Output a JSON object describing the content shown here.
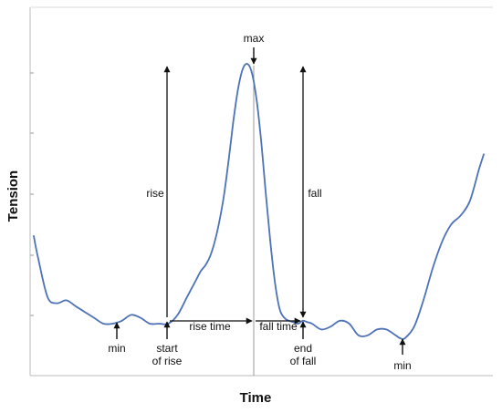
{
  "chart_data": {
    "type": "line",
    "xlabel": "Time",
    "ylabel": "Tension",
    "grid": false,
    "series": [
      {
        "color": "#4d72b8",
        "x": [
          0,
          1,
          3,
          5,
          7,
          9,
          11,
          13,
          15,
          17,
          19,
          21,
          23,
          25,
          27,
          29,
          31,
          33,
          34,
          35,
          36,
          37,
          38,
          39,
          40,
          41,
          42,
          43,
          44,
          45,
          46,
          47,
          48,
          49,
          50,
          51,
          52,
          53,
          54,
          55,
          56,
          57,
          58,
          59,
          60,
          62,
          64,
          66,
          68,
          70,
          72,
          74,
          76,
          78,
          79,
          80,
          82,
          84,
          86,
          88,
          90,
          92,
          94,
          96,
          97
        ],
        "y": [
          0.41,
          0.33,
          0.2,
          0.18,
          0.19,
          0.17,
          0.15,
          0.13,
          0.11,
          0.11,
          0.12,
          0.14,
          0.13,
          0.11,
          0.11,
          0.11,
          0.14,
          0.2,
          0.23,
          0.26,
          0.29,
          0.31,
          0.34,
          0.39,
          0.46,
          0.55,
          0.67,
          0.8,
          0.91,
          0.98,
          1.0,
          0.97,
          0.88,
          0.74,
          0.56,
          0.39,
          0.25,
          0.16,
          0.13,
          0.12,
          0.115,
          0.11,
          0.12,
          0.115,
          0.11,
          0.09,
          0.1,
          0.12,
          0.11,
          0.07,
          0.07,
          0.09,
          0.09,
          0.07,
          0.06,
          0.06,
          0.1,
          0.19,
          0.3,
          0.39,
          0.45,
          0.48,
          0.53,
          0.64,
          0.69
        ]
      }
    ],
    "annotations": [
      {
        "key": "max",
        "label": [
          "max"
        ]
      },
      {
        "key": "rise",
        "label": [
          "rise"
        ]
      },
      {
        "key": "fall",
        "label": [
          "fall"
        ]
      },
      {
        "key": "rise-time",
        "label": [
          "rise time"
        ]
      },
      {
        "key": "fall-time",
        "label": [
          "fall time"
        ]
      },
      {
        "key": "min-left",
        "label": [
          "min"
        ]
      },
      {
        "key": "start-of-rise",
        "label": [
          "start",
          "of rise"
        ]
      },
      {
        "key": "end-of-fall",
        "label": [
          "end",
          "of fall"
        ]
      },
      {
        "key": "min-right",
        "label": [
          "min"
        ]
      }
    ]
  }
}
